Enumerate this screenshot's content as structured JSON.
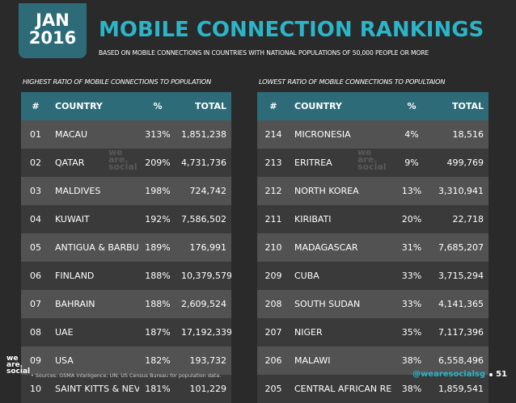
{
  "date": {
    "month": "JAN",
    "year": "2016"
  },
  "title": "MOBILE CONNECTION RANKINGS",
  "subtitle": "BASED ON MOBILE CONNECTIONS IN COUNTRIES WITH NATIONAL POPULATIONS OF 50,000 PEOPLE OR MORE",
  "left": {
    "label": "HIGHEST RATIO OF MOBILE CONNECTIONS TO POPULATION",
    "headers": [
      "#",
      "COUNTRY",
      "%",
      "TOTAL"
    ],
    "rows": [
      [
        "01",
        "MACAU",
        "313%",
        "1,851,238"
      ],
      [
        "02",
        "QATAR",
        "209%",
        "4,731,736"
      ],
      [
        "03",
        "MALDIVES",
        "198%",
        "724,742"
      ],
      [
        "04",
        "KUWAIT",
        "192%",
        "7,586,502"
      ],
      [
        "05",
        "ANTIGUA & BARBUDA",
        "189%",
        "176,991"
      ],
      [
        "06",
        "FINLAND",
        "188%",
        "10,379,579"
      ],
      [
        "07",
        "BAHRAIN",
        "188%",
        "2,609,524"
      ],
      [
        "08",
        "UAE",
        "187%",
        "17,192,339"
      ],
      [
        "09",
        "USA",
        "182%",
        "193,732"
      ],
      [
        "10",
        "SAINT KITTS & NEVIS",
        "181%",
        "101,229"
      ]
    ]
  },
  "right": {
    "label": "LOWEST RATIO OF MOBILE CONNECTIONS TO POPULTAION",
    "headers": [
      "#",
      "COUNTRY",
      "%",
      "TOTAL"
    ],
    "rows": [
      [
        "214",
        "MICRONESIA",
        "4%",
        "18,516"
      ],
      [
        "213",
        "ERITREA",
        "9%",
        "499,769"
      ],
      [
        "212",
        "NORTH KOREA",
        "13%",
        "3,310,941"
      ],
      [
        "211",
        "KIRIBATI",
        "20%",
        "22,718"
      ],
      [
        "210",
        "MADAGASCAR",
        "31%",
        "7,685,207"
      ],
      [
        "209",
        "CUBA",
        "33%",
        "3,715,294"
      ],
      [
        "208",
        "SOUTH SUDAN",
        "33%",
        "4,141,365"
      ],
      [
        "207",
        "NIGER",
        "35%",
        "7,117,396"
      ],
      [
        "206",
        "MALAWI",
        "38%",
        "6,558,496"
      ],
      [
        "205",
        "CENTRAL AFRICAN REP.",
        "38%",
        "1,859,541"
      ]
    ]
  },
  "watermark": [
    "we",
    "are.",
    "social"
  ],
  "logo": [
    "we",
    "are.",
    "social"
  ],
  "source": "•  Sources: GSMA Intelligence; UN; US Census Bureau for population data.",
  "handle": "@wearesocialsg",
  "page_number": "51",
  "colors": {
    "accent": "#2bb5c9",
    "header_bg": "#2d6b78",
    "row_light": "#525252",
    "row_dark": "#3a3a3a",
    "page_bg": "#2a2a2a"
  }
}
